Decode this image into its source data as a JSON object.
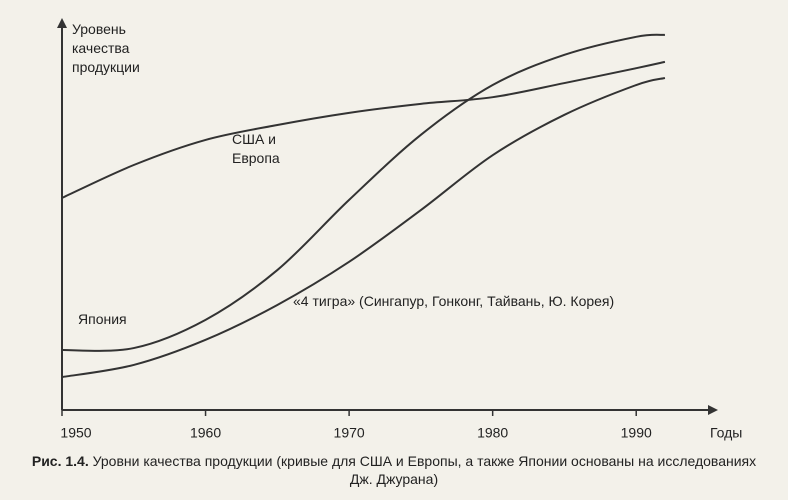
{
  "chart_data": {
    "type": "line",
    "y_label": "Уровень качества продукции",
    "x_label": "Годы",
    "x": [
      1950,
      1955,
      1960,
      1965,
      1970,
      1975,
      1980,
      1985,
      1990,
      1992
    ],
    "xlim": [
      1950,
      1995
    ],
    "xticks": [
      1950,
      1960,
      1970,
      1980,
      1990
    ],
    "ylim": [
      0,
      100
    ],
    "series": [
      {
        "name": "США и Европа",
        "color": "#333333",
        "values": [
          54.1,
          62.5,
          68.9,
          72.7,
          75.8,
          78.1,
          79.8,
          83.4,
          87.2,
          88.8
        ]
      },
      {
        "name": "Япония",
        "color": "#333333",
        "values": [
          15.3,
          15.8,
          23,
          35.7,
          53.6,
          70.2,
          82.9,
          90.6,
          95.2,
          95.7
        ]
      },
      {
        "name": "«4 тигра» (Сингапур, Гонконг, Тайвань, Ю. Корея)",
        "color": "#333333",
        "values": [
          8.4,
          11.5,
          17.9,
          26.8,
          37.8,
          51,
          65,
          75.3,
          82.9,
          84.7
        ]
      }
    ],
    "caption": {
      "label": "Рис. 1.4.",
      "text": "Уровни качества продукции (кривые для США и Европы, а также Японии основаны на исследованиях Дж. Джурана)"
    }
  }
}
